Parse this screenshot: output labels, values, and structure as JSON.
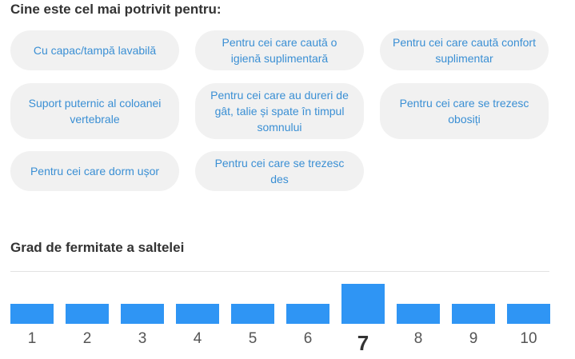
{
  "suitable": {
    "title": "Cine este cel mai potrivit pentru:",
    "items": [
      "Cu capac/tampă lavabilă",
      "Pentru cei care caută o igienă suplimentară",
      "Pentru cei care caută confort suplimentar",
      "Suport puternic al coloanei vertebrale",
      "Pentru cei care au dureri de gât, talie și spate în timpul somnului",
      "Pentru cei care se trezesc obosiți",
      "Pentru cei care dorm ușor",
      "Pentru cei care se trezesc des"
    ]
  },
  "firmness": {
    "title": "Grad de fermitate a saltelei",
    "levels": [
      "1",
      "2",
      "3",
      "4",
      "5",
      "6",
      "7",
      "8",
      "9",
      "10"
    ],
    "selected": 7,
    "bar_color": "#2f95f4"
  }
}
